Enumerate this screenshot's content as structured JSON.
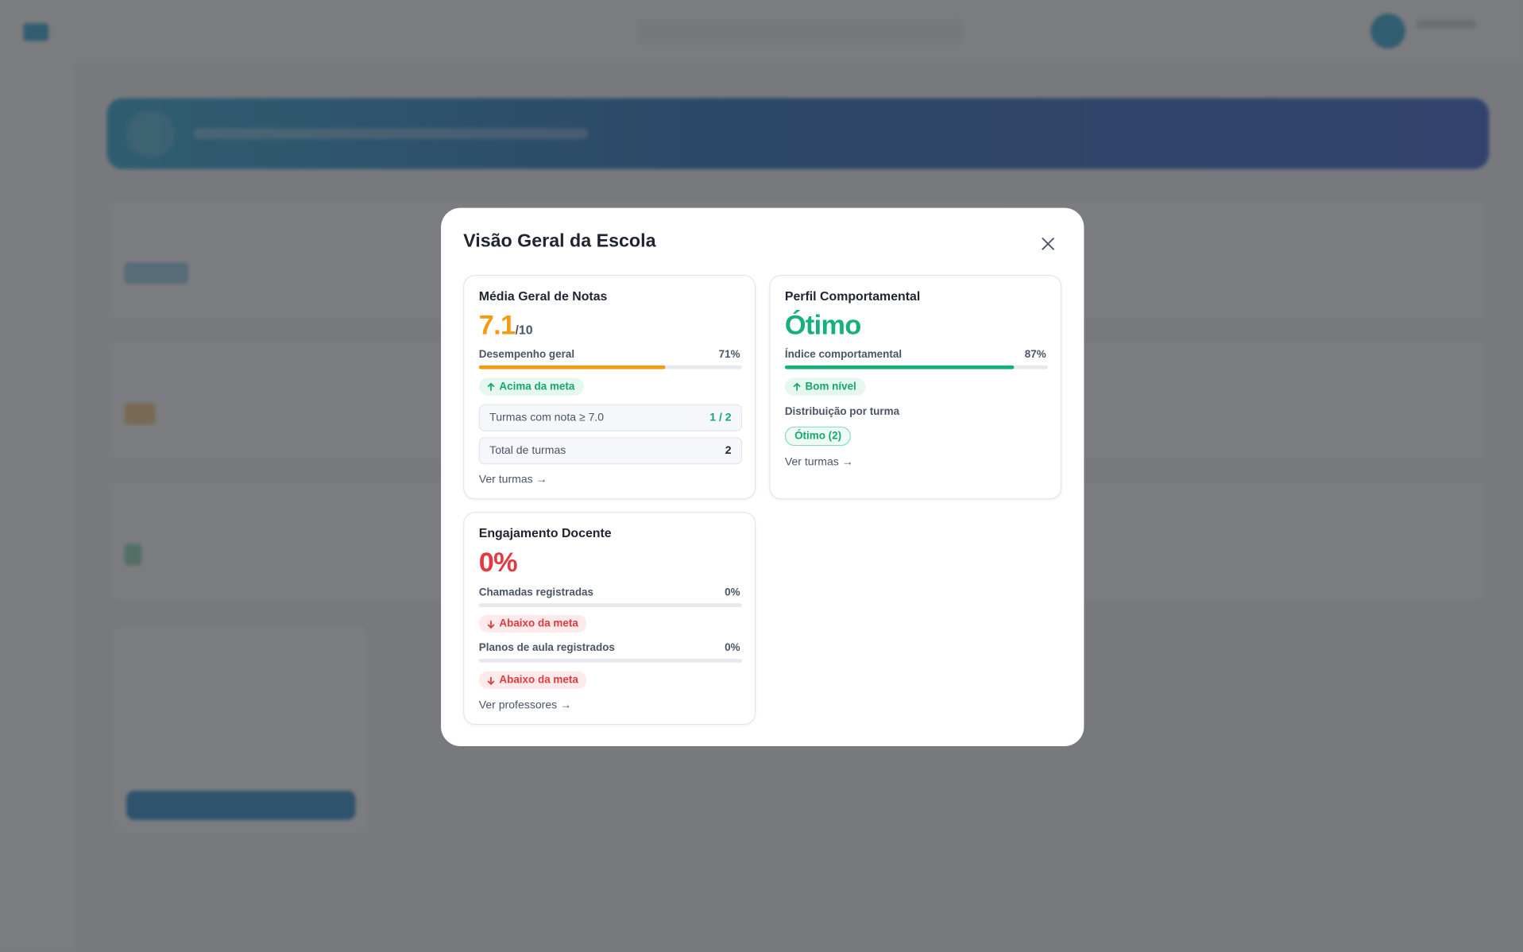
{
  "modal": {
    "title": "Visão Geral da Escola"
  },
  "grades": {
    "title": "Média Geral de Notas",
    "score": 7.1,
    "score_suffix": "/10",
    "metric": {
      "label": "Desempenho geral",
      "value": 71,
      "value_label": "71%"
    },
    "badge": "Acima da meta",
    "rows": [
      {
        "label": "Turmas com nota ≥ 7.0",
        "value": "1 / 2"
      },
      {
        "label": "Total de turmas",
        "value": 2
      }
    ],
    "link": "Ver turmas →"
  },
  "behavior": {
    "title": "Perfil Comportamental",
    "score": "Ótimo",
    "metric": {
      "label": "Índice comportamental",
      "value": 87,
      "value_label": "87%"
    },
    "badge": "Bom nível",
    "distribution_title": "Distribuição por turma",
    "distribution": [
      "Ótimo (2)"
    ],
    "link": "Ver turmas →"
  },
  "teaching": {
    "title": "Engajamento Docente",
    "score": {
      "value": 0,
      "label": "0%"
    },
    "metrics": [
      {
        "label": "Chamadas registradas",
        "value": 0,
        "value_label": "0%",
        "badge": "Abaixo da meta"
      },
      {
        "label": "Planos de aula registrados",
        "value": 0,
        "value_label": "0%",
        "badge": "Abaixo da meta"
      }
    ],
    "link": "Ver professores →"
  }
}
